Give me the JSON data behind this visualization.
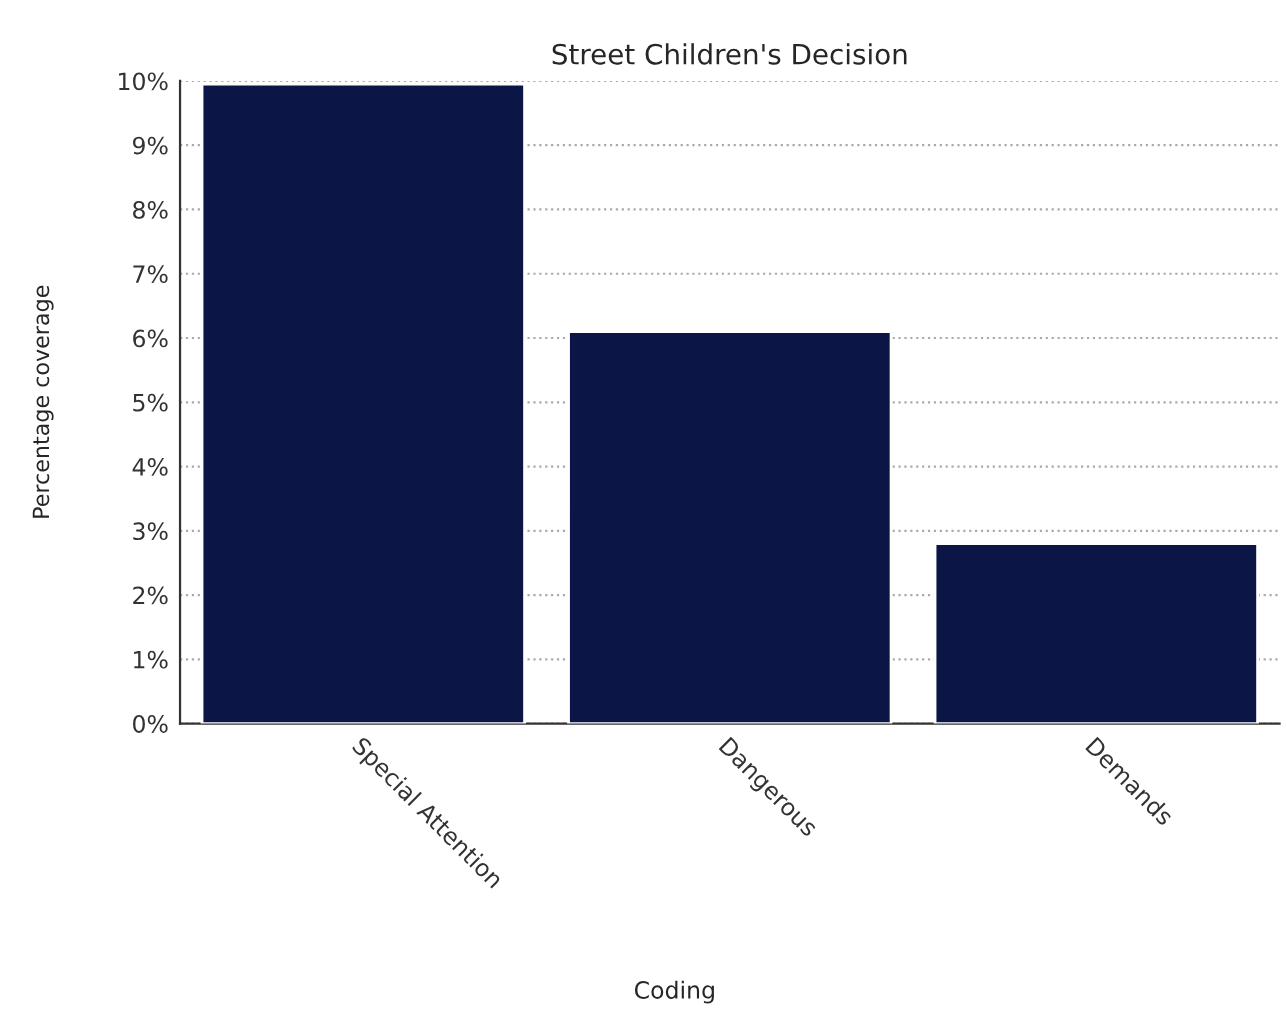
{
  "chart_data": {
    "type": "bar",
    "title": "Street Children's Decision",
    "xlabel": "Coding",
    "ylabel": "Percentage coverage",
    "categories": [
      "Special Attention",
      "Dangerous",
      "Demands"
    ],
    "values": [
      9.95,
      6.1,
      2.8
    ],
    "color": "#0c1646",
    "ylim": [
      0,
      10
    ],
    "yticks": [
      {
        "value": 0,
        "label": "0%"
      },
      {
        "value": 1,
        "label": "1%"
      },
      {
        "value": 2,
        "label": "2%"
      },
      {
        "value": 3,
        "label": "3%"
      },
      {
        "value": 4,
        "label": "4%"
      },
      {
        "value": 5,
        "label": "5%"
      },
      {
        "value": 6,
        "label": "6%"
      },
      {
        "value": 7,
        "label": "7%"
      },
      {
        "value": 8,
        "label": "8%"
      },
      {
        "value": 9,
        "label": "9%"
      },
      {
        "value": 10,
        "label": "10%"
      }
    ],
    "grid": "y",
    "legend": false
  }
}
